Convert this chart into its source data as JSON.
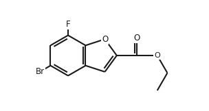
{
  "bg_color": "#ffffff",
  "line_color": "#1a1a1a",
  "line_width": 1.5,
  "label_F": "F",
  "label_Br": "Br",
  "label_O_ring": "O",
  "label_O_carbonyl": "O",
  "label_O_ester": "O",
  "font_size_atoms": 8.5,
  "figsize": [
    3.04,
    1.62
  ],
  "dpi": 100
}
